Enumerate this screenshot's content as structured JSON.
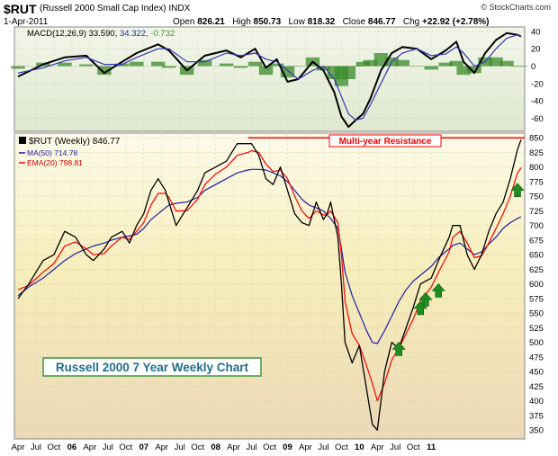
{
  "header": {
    "symbol": "$RUT",
    "description": "(Russell 2000 Small Cap Index)",
    "exchange": "INDX",
    "date": "1-Apr-2011",
    "open_label": "Open",
    "open": "826.21",
    "high_label": "High",
    "high": "850.73",
    "low_label": "Low",
    "low": "818.32",
    "close_label": "Close",
    "close": "846.77",
    "chg_label": "Chg",
    "chg": "+22.92 (+2.78%)",
    "credit": "© StockCharts.com"
  },
  "macd_legend": {
    "label": "MACD(12,26,9)",
    "macd": "33.590,",
    "signal": "34.322,",
    "hist": "-0.732"
  },
  "price_legend": {
    "main": "$RUT (Weekly) 846.77",
    "ma": "MA(50) 714.78",
    "ema": "EMA(20) 798.81"
  },
  "annotations": {
    "resistance": "Multi-year Resistance",
    "chart_title": "Russell 2000 7 Year Weekly Chart"
  },
  "colors": {
    "up_arrow": "#1e8c1e",
    "resistance": "#ff0000",
    "ema": "#ff0000",
    "ma": "#1f1fa0",
    "title_text": "#1f6f8b"
  },
  "chart_data": [
    {
      "type": "line",
      "panel": "macd",
      "ylim": [
        -75,
        45
      ],
      "yticks": [
        40,
        20,
        0,
        -20,
        -40,
        -60
      ],
      "x": [
        2004.25,
        2004.6,
        2004.9,
        2005.2,
        2005.45,
        2005.7,
        2005.9,
        2006.2,
        2006.35,
        2006.6,
        2006.85,
        2007.15,
        2007.35,
        2007.55,
        2007.7,
        2007.85,
        2008.0,
        2008.15,
        2008.35,
        2008.5,
        2008.65,
        2008.75,
        2008.85,
        2008.95,
        2009.05,
        2009.15,
        2009.3,
        2009.45,
        2009.6,
        2009.8,
        2010.0,
        2010.2,
        2010.35,
        2010.45,
        2010.6,
        2010.75,
        2010.9,
        2011.05,
        2011.2,
        2011.25
      ],
      "series": [
        {
          "values": [
            -12,
            2,
            10,
            12,
            -8,
            5,
            15,
            25,
            18,
            -5,
            12,
            18,
            10,
            20,
            -2,
            8,
            -18,
            -15,
            5,
            -5,
            -30,
            -58,
            -70,
            -62,
            -55,
            -38,
            -5,
            15,
            22,
            20,
            8,
            18,
            28,
            5,
            -8,
            15,
            30,
            38,
            36,
            34
          ]
        },
        {
          "values": [
            -8,
            -2,
            6,
            10,
            2,
            2,
            10,
            20,
            20,
            5,
            5,
            15,
            12,
            15,
            8,
            5,
            -5,
            -15,
            -5,
            0,
            -15,
            -35,
            -55,
            -62,
            -60,
            -45,
            -20,
            5,
            15,
            20,
            12,
            14,
            22,
            15,
            0,
            5,
            20,
            32,
            36,
            34.3
          ]
        }
      ],
      "histogram": [
        -3,
        4,
        4,
        2,
        -10,
        3,
        5,
        5,
        -2,
        -10,
        7,
        3,
        -2,
        5,
        -10,
        3,
        -13,
        0,
        10,
        -5,
        -15,
        -23,
        -15,
        0,
        5,
        7,
        15,
        10,
        7,
        0,
        -4,
        4,
        6,
        -10,
        -8,
        10,
        10,
        6,
        0,
        -0.7
      ]
    },
    {
      "type": "line",
      "panel": "price",
      "ylim": [
        335,
        858
      ],
      "yticks": [
        350,
        375,
        400,
        425,
        450,
        475,
        500,
        525,
        550,
        575,
        600,
        625,
        650,
        675,
        700,
        725,
        750,
        775,
        800,
        825,
        850
      ],
      "xticks": [
        "Apr",
        "Jul",
        "Oct",
        "06",
        "Apr",
        "Jul",
        "Oct",
        "07",
        "Apr",
        "Jul",
        "Oct",
        "08",
        "Apr",
        "Jul",
        "Oct",
        "09",
        "Apr",
        "Jul",
        "Oct",
        "10",
        "Apr",
        "Jul",
        "Oct",
        "11"
      ],
      "x": [
        2004.25,
        2004.4,
        2004.6,
        2004.75,
        2004.9,
        2005.05,
        2005.2,
        2005.3,
        2005.45,
        2005.55,
        2005.7,
        2005.8,
        2005.9,
        2006.0,
        2006.1,
        2006.2,
        2006.3,
        2006.35,
        2006.45,
        2006.6,
        2006.75,
        2006.85,
        2007.0,
        2007.15,
        2007.3,
        2007.45,
        2007.5,
        2007.6,
        2007.7,
        2007.8,
        2007.9,
        2008.0,
        2008.1,
        2008.2,
        2008.3,
        2008.4,
        2008.5,
        2008.55,
        2008.6,
        2008.7,
        2008.75,
        2008.8,
        2008.9,
        2009.0,
        2009.1,
        2009.18,
        2009.25,
        2009.35,
        2009.45,
        2009.55,
        2009.65,
        2009.75,
        2009.85,
        2010.0,
        2010.1,
        2010.25,
        2010.3,
        2010.4,
        2010.5,
        2010.6,
        2010.7,
        2010.8,
        2010.9,
        2011.0,
        2011.1,
        2011.2,
        2011.25
      ],
      "series": [
        {
          "name": "$RUT (Weekly) 846.77",
          "values": [
            575,
            600,
            640,
            650,
            690,
            680,
            650,
            640,
            660,
            680,
            690,
            670,
            700,
            720,
            760,
            780,
            760,
            740,
            700,
            730,
            760,
            790,
            800,
            810,
            840,
            840,
            840,
            820,
            780,
            770,
            800,
            760,
            720,
            705,
            700,
            740,
            710,
            720,
            740,
            680,
            600,
            500,
            465,
            495,
            420,
            360,
            350,
            450,
            500,
            490,
            525,
            560,
            600,
            610,
            640,
            680,
            700,
            700,
            650,
            625,
            650,
            690,
            720,
            740,
            780,
            830,
            847
          ]
        },
        {
          "name": "MA(50) 714.78",
          "values": [
            580,
            595,
            610,
            625,
            640,
            652,
            660,
            665,
            670,
            675,
            680,
            682,
            685,
            695,
            710,
            720,
            730,
            735,
            738,
            740,
            748,
            760,
            770,
            780,
            790,
            795,
            796,
            796,
            795,
            790,
            785,
            775,
            760,
            745,
            735,
            730,
            725,
            718,
            712,
            695,
            660,
            620,
            580,
            550,
            520,
            500,
            498,
            520,
            545,
            570,
            590,
            605,
            615,
            630,
            645,
            660,
            666,
            670,
            660,
            650,
            655,
            668,
            680,
            695,
            705,
            712,
            715
          ]
        },
        {
          "name": "EMA(20) 798.81",
          "values": [
            590,
            598,
            620,
            635,
            665,
            672,
            660,
            650,
            652,
            665,
            680,
            676,
            690,
            705,
            735,
            755,
            755,
            748,
            725,
            725,
            745,
            770,
            788,
            800,
            820,
            825,
            828,
            825,
            805,
            792,
            795,
            780,
            750,
            725,
            712,
            725,
            718,
            718,
            725,
            705,
            650,
            570,
            515,
            495,
            460,
            430,
            400,
            430,
            470,
            490,
            515,
            540,
            570,
            595,
            620,
            655,
            680,
            690,
            670,
            645,
            648,
            670,
            695,
            720,
            750,
            790,
            799
          ]
        }
      ],
      "resistance_level": 850,
      "arrows_x": [
        2009.55,
        2009.85,
        2009.92,
        2010.1,
        2011.2
      ],
      "arrows_y": [
        488,
        558,
        573,
        588,
        760
      ]
    }
  ]
}
